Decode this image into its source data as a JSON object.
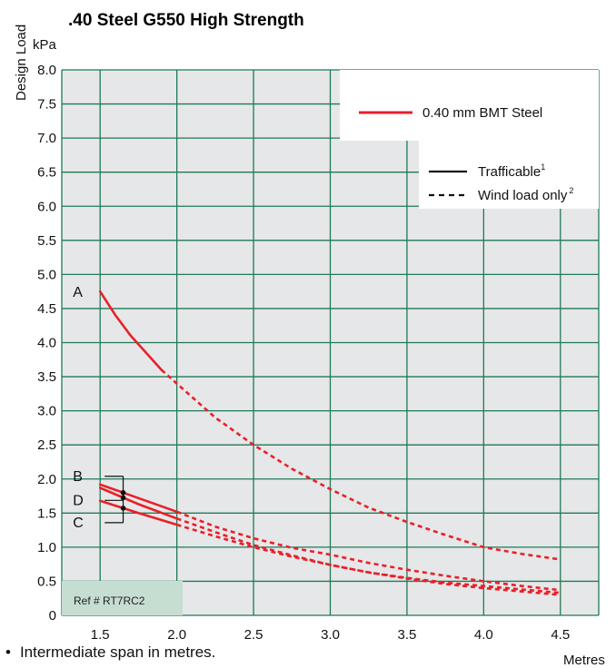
{
  "chart_data": {
    "type": "line",
    "title": ".40 Steel G550 High Strength",
    "ylabel": "Design Load",
    "yunit": "kPa",
    "xunit": "Metres",
    "xlim": [
      1.25,
      4.75
    ],
    "ylim": [
      0,
      8.0
    ],
    "x_ticks": [
      "1.5",
      "2.0",
      "2.5",
      "3.0",
      "3.5",
      "4.0",
      "4.5"
    ],
    "y_ticks": [
      "0",
      "0.5",
      "1.0",
      "1.5",
      "2.0",
      "2.5",
      "3.0",
      "3.5",
      "4.0",
      "4.5",
      "5.0",
      "5.5",
      "6.0",
      "6.5",
      "7.0",
      "7.5",
      "8.0"
    ],
    "grid": true,
    "colors": {
      "series": "#e8202a",
      "grid": "#1f7a57",
      "plot_bg": "#e6e7e8",
      "ref_bg": "#c6ddd2"
    },
    "legend": {
      "series_label": "0.40 mm BMT Steel",
      "trafficable": "Trafficable",
      "trafficable_sup": "1",
      "wind": "Wind load only",
      "wind_sup": "2"
    },
    "series": [
      {
        "name": "A",
        "points": [
          [
            1.5,
            4.75
          ],
          [
            1.6,
            4.4
          ],
          [
            1.7,
            4.1
          ],
          [
            1.8,
            3.85
          ],
          [
            1.9,
            3.6
          ],
          [
            2.0,
            3.4
          ],
          [
            2.25,
            2.9
          ],
          [
            2.5,
            2.5
          ],
          [
            2.75,
            2.15
          ],
          [
            3.0,
            1.85
          ],
          [
            3.25,
            1.58
          ],
          [
            3.5,
            1.37
          ],
          [
            3.75,
            1.18
          ],
          [
            4.0,
            1.0
          ],
          [
            4.25,
            0.9
          ],
          [
            4.5,
            0.82
          ]
        ],
        "trafficable_to": 1.9
      },
      {
        "name": "B",
        "points": [
          [
            1.5,
            1.92
          ],
          [
            1.75,
            1.72
          ],
          [
            2.0,
            1.52
          ],
          [
            2.25,
            1.3
          ],
          [
            2.5,
            1.13
          ],
          [
            2.75,
            0.99
          ],
          [
            3.0,
            0.89
          ],
          [
            3.25,
            0.77
          ],
          [
            3.5,
            0.67
          ],
          [
            3.75,
            0.58
          ],
          [
            4.0,
            0.5
          ],
          [
            4.25,
            0.43
          ],
          [
            4.5,
            0.37
          ]
        ],
        "trafficable_to": 2.0
      },
      {
        "name": "D",
        "points": [
          [
            1.5,
            1.87
          ],
          [
            1.75,
            1.63
          ],
          [
            2.0,
            1.42
          ],
          [
            2.25,
            1.22
          ],
          [
            2.5,
            1.03
          ],
          [
            2.75,
            0.88
          ],
          [
            3.0,
            0.74
          ],
          [
            3.25,
            0.63
          ],
          [
            3.5,
            0.54
          ],
          [
            3.75,
            0.46
          ],
          [
            4.0,
            0.4
          ],
          [
            4.25,
            0.35
          ],
          [
            4.5,
            0.3
          ]
        ],
        "trafficable_to": 2.0
      },
      {
        "name": "C",
        "points": [
          [
            1.5,
            1.68
          ],
          [
            1.75,
            1.5
          ],
          [
            2.0,
            1.33
          ],
          [
            2.25,
            1.16
          ],
          [
            2.5,
            1.0
          ],
          [
            2.75,
            0.86
          ],
          [
            3.0,
            0.74
          ],
          [
            3.25,
            0.63
          ],
          [
            3.5,
            0.55
          ],
          [
            3.75,
            0.48
          ],
          [
            4.0,
            0.43
          ],
          [
            4.25,
            0.38
          ],
          [
            4.5,
            0.33
          ]
        ],
        "trafficable_to": 2.0
      }
    ],
    "bracket_x": 1.65,
    "ref_label": "Ref # RT7RC2"
  },
  "footnote": "Intermediate span in metres."
}
